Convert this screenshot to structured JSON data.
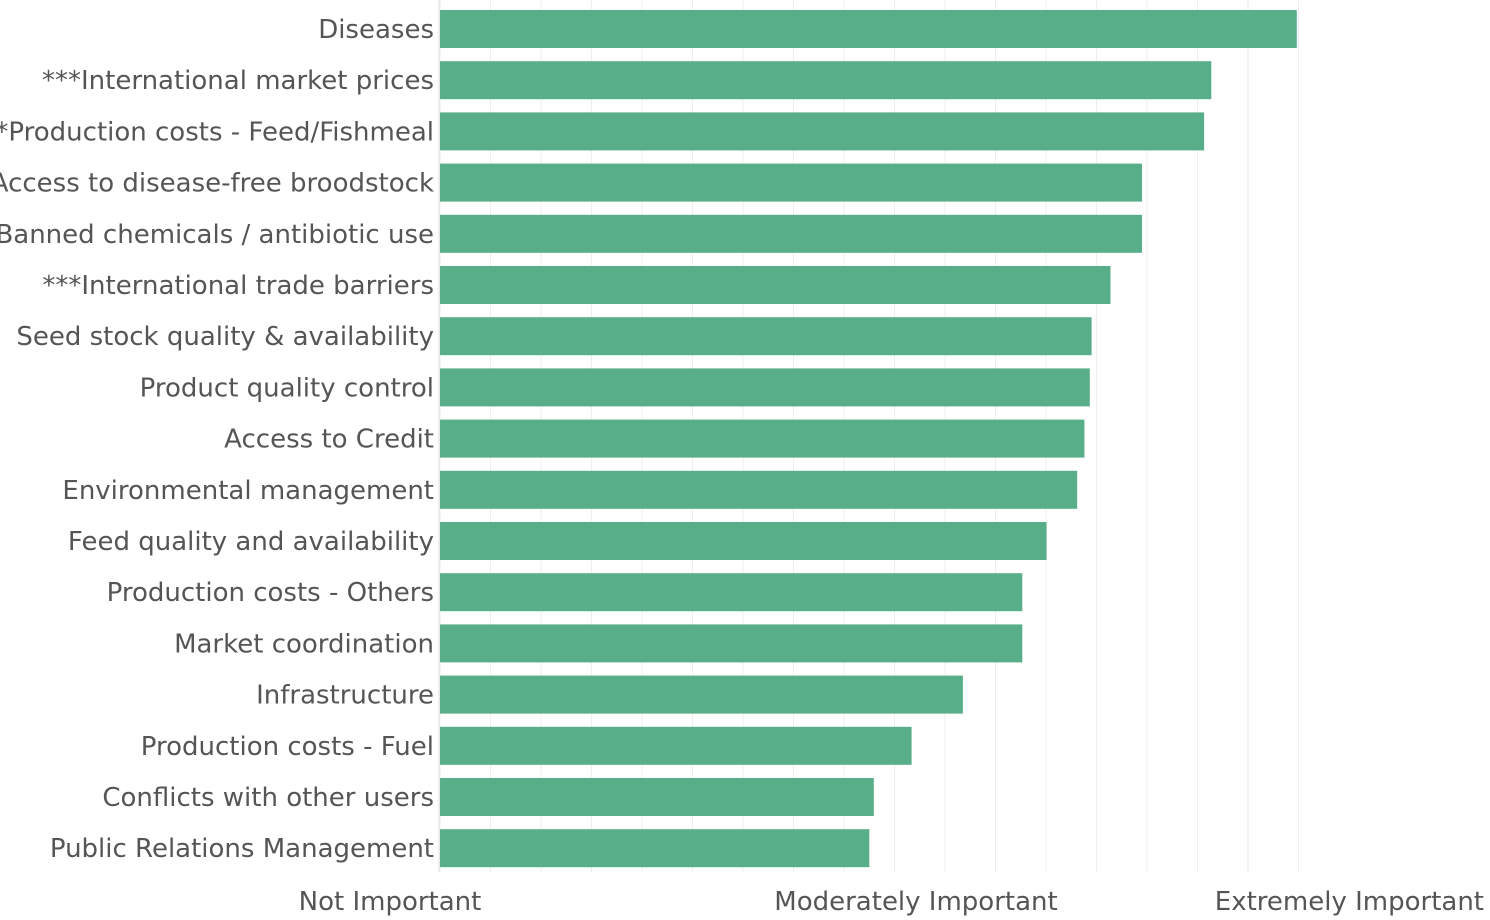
{
  "chart_data": {
    "type": "bar",
    "orientation": "horizontal",
    "categories": [
      "Diseases",
      "***International market prices",
      "***Production costs - Feed/Fishmeal",
      "Access to disease-free broodstock",
      "Banned chemicals / antibiotic use",
      "***International trade barriers",
      "Seed stock quality & availability",
      "Product quality control",
      "Access to Credit",
      "Environmental management",
      "Feed quality and availability",
      "Production costs - Others",
      "Market coordination",
      "Infrastructure",
      "Production costs - Fuel",
      "Conflicts with other users",
      "Public Relations Management"
    ],
    "values": [
      0.952,
      0.857,
      0.849,
      0.78,
      0.78,
      0.745,
      0.724,
      0.722,
      0.716,
      0.708,
      0.674,
      0.647,
      0.647,
      0.581,
      0.524,
      0.482,
      0.477
    ],
    "xlim": [
      0,
      1
    ],
    "tick_labels": [
      "Not Important",
      "Moderately Important",
      "Extremely Important"
    ],
    "grid": "vertical",
    "bar_color": "#57ae88",
    "gridline_color": "#eeeeee",
    "label_color": "#555555"
  }
}
